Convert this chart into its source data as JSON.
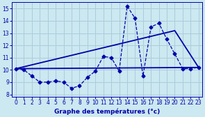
{
  "title": "Graphe des températures (°c)",
  "bg_color": "#cce8f0",
  "line_color": "#0000aa",
  "grid_color": "#aaccdd",
  "xlim": [
    -0.5,
    23.5
  ],
  "ylim": [
    7.8,
    15.5
  ],
  "xticks": [
    0,
    1,
    2,
    3,
    4,
    5,
    6,
    7,
    8,
    9,
    10,
    11,
    12,
    13,
    14,
    15,
    16,
    17,
    18,
    19,
    20,
    21,
    22,
    23
  ],
  "yticks": [
    8,
    9,
    10,
    11,
    12,
    13,
    14,
    15
  ],
  "series1_x": [
    0,
    1,
    2,
    3,
    4,
    5,
    6,
    7,
    8,
    9,
    10,
    11,
    12,
    13,
    14,
    15,
    16,
    17,
    18,
    19,
    20,
    21,
    22,
    23
  ],
  "series1_y": [
    10.1,
    10.0,
    9.5,
    9.0,
    9.0,
    9.1,
    9.0,
    8.5,
    8.7,
    9.4,
    9.9,
    11.1,
    11.0,
    9.9,
    15.2,
    14.2,
    9.5,
    13.5,
    13.8,
    12.5,
    11.3,
    10.1,
    10.1,
    10.2
  ],
  "series2_x": [
    0,
    23
  ],
  "series2_y": [
    10.1,
    10.2
  ],
  "series3_x": [
    0,
    20,
    23
  ],
  "series3_y": [
    10.1,
    13.2,
    10.2
  ]
}
